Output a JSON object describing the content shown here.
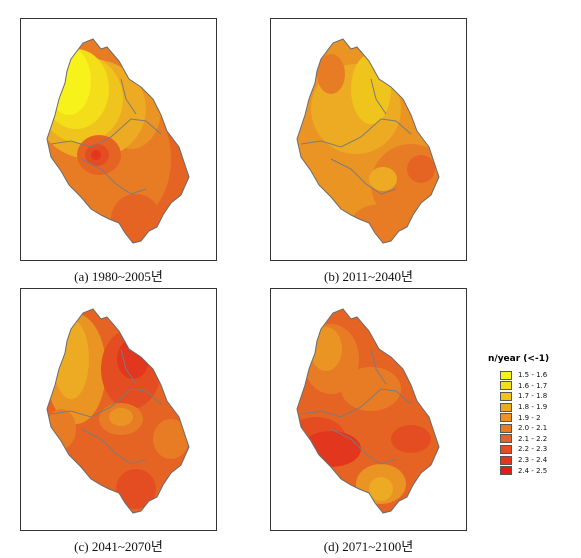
{
  "panels": [
    {
      "id": "a",
      "caption": "(a)  1980~2005년"
    },
    {
      "id": "b",
      "caption": "(b)  2011~2040년"
    },
    {
      "id": "c",
      "caption": "(c)  2041~2070년"
    },
    {
      "id": "d",
      "caption": "(d)  2071~2100년"
    }
  ],
  "legend": {
    "title": "n/year (<-1)",
    "items": [
      {
        "label": "1.5 - 1.6",
        "color": "#f7f21a"
      },
      {
        "label": "1.6 - 1.7",
        "color": "#f3de19"
      },
      {
        "label": "1.7 - 1.8",
        "color": "#efc41d"
      },
      {
        "label": "1.8 - 1.9",
        "color": "#ecab22"
      },
      {
        "label": "1.9 - 2",
        "color": "#ea9424"
      },
      {
        "label": "2.0 - 2.1",
        "color": "#e87c24"
      },
      {
        "label": "2.1 - 2.2",
        "color": "#e66423"
      },
      {
        "label": "2.2 - 2.3",
        "color": "#e44d21"
      },
      {
        "label": "2.3 - 2.4",
        "color": "#e2361e"
      },
      {
        "label": "2.4 - 2.5",
        "color": "#e01b1a"
      }
    ]
  }
}
